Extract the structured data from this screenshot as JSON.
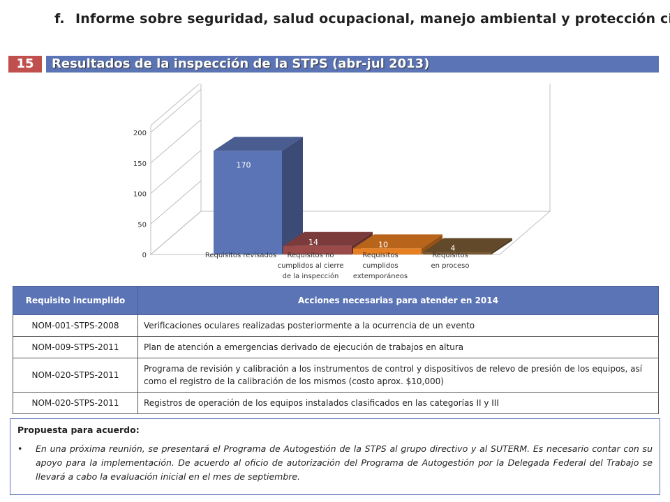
{
  "heading": {
    "marker": "f.",
    "text": "Informe sobre seguridad, salud ocupacional, manejo ambiental  y protección civil"
  },
  "slide_number": "15",
  "title": "Resultados de la inspección de la STPS (abr-jul 2013)",
  "chart_data": {
    "type": "bar",
    "title": "",
    "xlabel": "",
    "ylabel": "",
    "ylim": [
      0,
      200
    ],
    "y_ticks": [
      0,
      50,
      100,
      150,
      200
    ],
    "categories": [
      [
        "Requisitos revisados"
      ],
      [
        "Requisitos no",
        "cumplidos al cierre",
        "de la inspección"
      ],
      [
        "Requisitos",
        "cumplidos",
        "extemporáneos"
      ],
      [
        "Requisitos",
        "en proceso"
      ]
    ],
    "values": [
      170,
      14,
      10,
      4
    ],
    "colors": [
      "#5b74b5",
      "#9b4a4a",
      "#e67e22",
      "#7a5b35"
    ],
    "grid": true,
    "legend": "none",
    "three_d": true
  },
  "table": {
    "headers": [
      "Requisito incumplido",
      "Acciones necesarias para atender en 2014"
    ],
    "rows": [
      [
        "NOM-001-STPS-2008",
        "Verificaciones oculares realizadas posteriormente a la ocurrencia de un evento"
      ],
      [
        "NOM-009-STPS-2011",
        "Plan de atención a emergencias derivado de ejecución de trabajos en altura"
      ],
      [
        "NOM-020-STPS-2011",
        "Programa de revisión y calibración a los instrumentos de control y dispositivos de relevo de presión de los equipos, así como el registro de la calibración de los mismos (costo aprox. $10,000)"
      ],
      [
        "NOM-020-STPS-2011",
        "Registros de operación de los equipos instalados clasificados en las categorías II y  III"
      ]
    ]
  },
  "proposal": {
    "title": "Propuesta para acuerdo:",
    "bullet": "•",
    "text": "En una próxima reunión, se presentará el Programa de Autogestión de la STPS al grupo directivo y al SUTERM. Es necesario contar con su apoyo para la implementación. De acuerdo al oficio de autorización del Programa de Autogestión por la Delegada Federal del Trabajo se llevará a cabo la evaluación inicial en el mes de septiembre."
  }
}
